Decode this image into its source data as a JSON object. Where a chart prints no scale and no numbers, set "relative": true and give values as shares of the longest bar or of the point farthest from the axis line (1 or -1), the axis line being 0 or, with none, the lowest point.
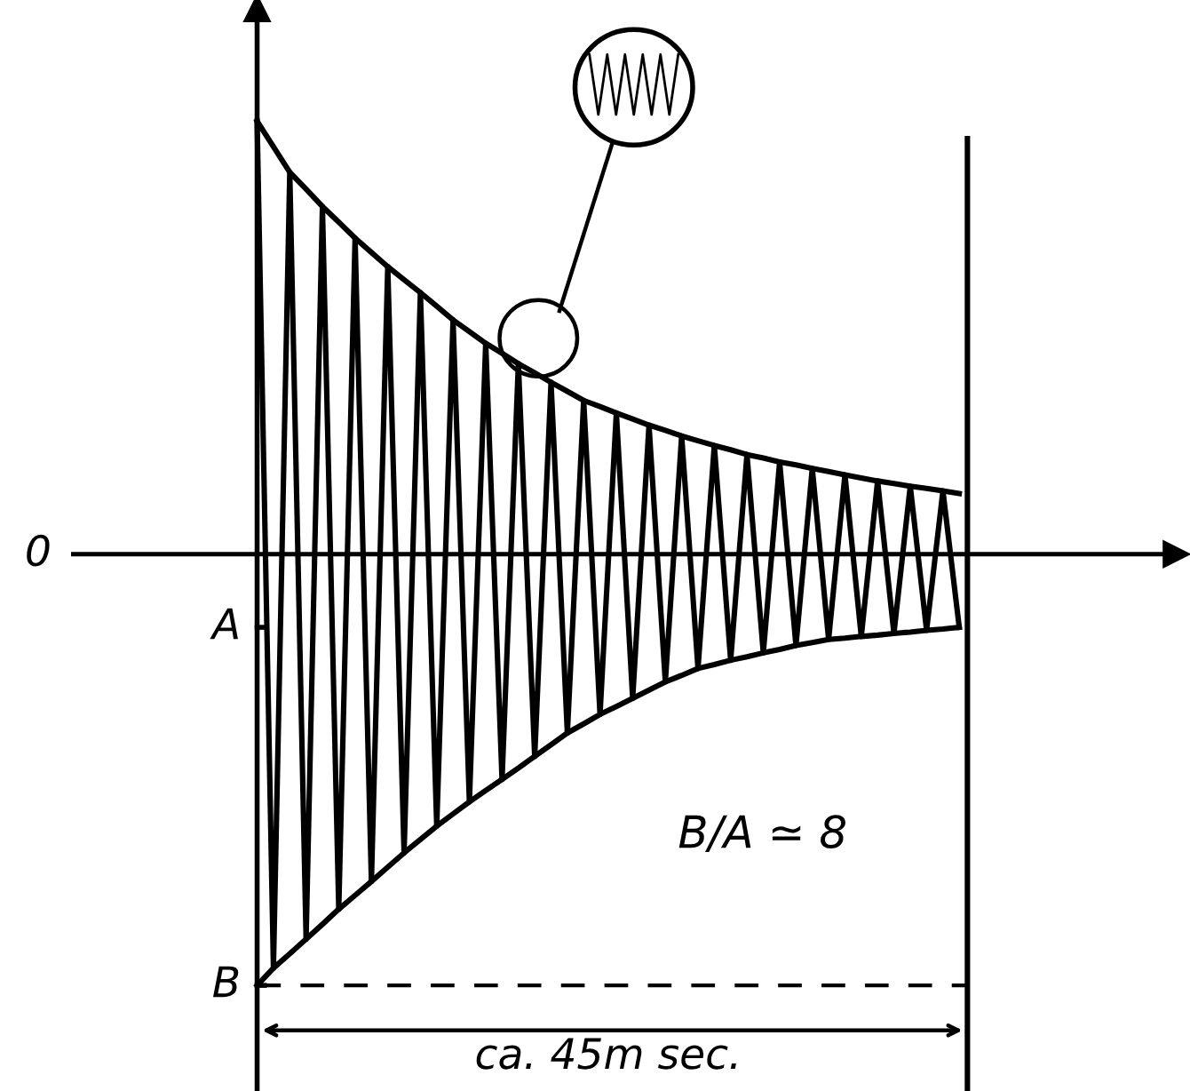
{
  "chart_data": {
    "type": "line",
    "relative": true,
    "categories": [
      null,
      null,
      null,
      null,
      null,
      null,
      null,
      null,
      null,
      null,
      null,
      null,
      null,
      null,
      null,
      null,
      null,
      null,
      null,
      null,
      null,
      null,
      null,
      null,
      null,
      null,
      null,
      null,
      null,
      null,
      null,
      null,
      null,
      null,
      null,
      null,
      null,
      null,
      null,
      null,
      null,
      null,
      null,
      null
    ],
    "marker": "none",
    "line_style": "solid",
    "series": [
      {
        "color": "#000000",
        "values": [
          1.0,
          -0.956,
          0.882,
          -0.889,
          0.803,
          -0.82,
          0.73,
          -0.756,
          0.664,
          -0.69,
          0.604,
          -0.628,
          0.541,
          -0.572,
          0.487,
          -0.52,
          0.44,
          -0.467,
          0.397,
          -0.413,
          0.355,
          -0.37,
          0.326,
          -0.333,
          0.298,
          -0.295,
          0.273,
          -0.264,
          0.251,
          -0.245,
          0.23,
          -0.228,
          0.213,
          -0.211,
          0.198,
          -0.197,
          0.183,
          -0.19,
          0.169,
          -0.183,
          0.157,
          -0.176,
          0.146,
          -0.169
        ]
      },
      {
        "color": "#000000",
        "values": [
          1.0,
          0.941,
          0.882,
          0.843,
          0.803,
          0.767,
          0.73,
          0.697,
          0.664,
          0.634,
          0.604,
          0.573,
          0.541,
          0.514,
          0.487,
          0.464,
          0.44,
          0.419,
          0.397,
          0.376,
          0.355,
          0.341,
          0.326,
          0.312,
          0.298,
          0.286,
          0.273,
          0.262,
          0.251,
          0.241,
          0.23,
          0.222,
          0.213,
          0.206,
          0.198,
          0.191,
          0.183,
          0.176,
          0.169,
          0.163,
          0.157,
          0.152,
          0.146,
          0.14
        ]
      },
      {
        "color": "#000000",
        "values": [
          -0.996,
          -0.956,
          -0.923,
          -0.889,
          -0.855,
          -0.82,
          -0.788,
          -0.756,
          -0.723,
          -0.69,
          -0.659,
          -0.628,
          -0.6,
          -0.572,
          -0.546,
          -0.52,
          -0.494,
          -0.467,
          -0.44,
          -0.413,
          -0.392,
          -0.37,
          -0.352,
          -0.333,
          -0.314,
          -0.295,
          -0.28,
          -0.264,
          -0.255,
          -0.245,
          -0.237,
          -0.228,
          -0.22,
          -0.211,
          -0.204,
          -0.197,
          -0.194,
          -0.19,
          -0.187,
          -0.183,
          -0.18,
          -0.176,
          -0.173,
          -0.169
        ]
      }
    ],
    "ref_lines": [
      {
        "axis": "y",
        "value": -0.996,
        "line_style": "dashed",
        "color": "#000000"
      }
    ],
    "annotations": [
      "0",
      "A",
      "B",
      "B/A ≃ 8",
      "ca. 45m sec."
    ]
  }
}
